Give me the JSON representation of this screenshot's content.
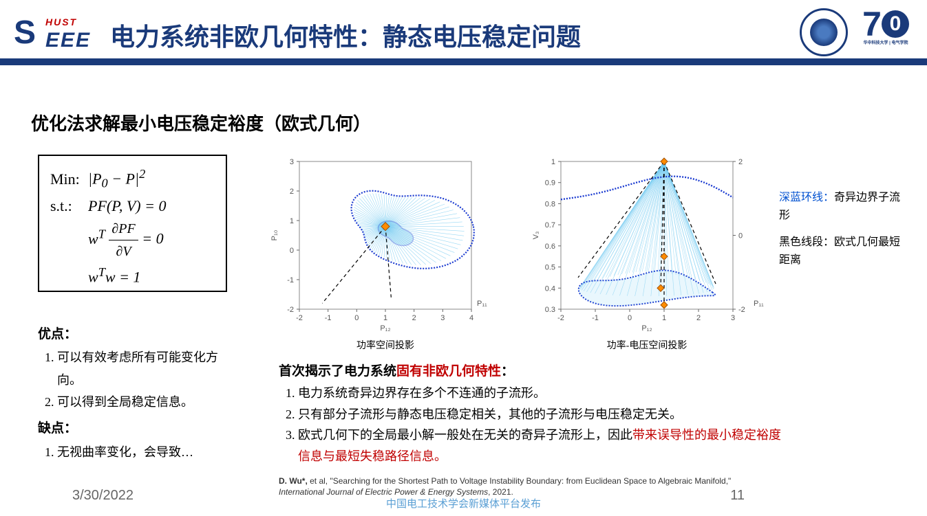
{
  "header": {
    "logo_hust": "HUST",
    "logo_s": "S",
    "logo_eee": "EEE",
    "title": "电力系统非欧几何特性：静态电压稳定问题",
    "anniv_7": "7",
    "anniv_0": "0",
    "anniv_sub": "华中科技大学 | 电气学院"
  },
  "section_title": "优化法求解最小电压稳定裕度（欧式几何）",
  "formula": {
    "min_label": "Min:",
    "min_expr_html": "|<i>P</i><sub>0</sub> − <i>P</i>|<sup>2</sup>",
    "st_label": "s.t.:",
    "st1_html": "<i>PF</i>(<i>P</i>, <i>V</i>) = 0",
    "st2_prefix_html": "<i>w</i><sup><i>T</i></sup> ",
    "st2_frac_num": "∂PF",
    "st2_frac_den": "∂V",
    "st2_suffix": " = 0",
    "st3_html": "<i>w</i><sup><i>T</i></sup><i>w</i> = 1"
  },
  "pros": {
    "heading": "优点：",
    "items": [
      "可以有效考虑所有可能变化方向。",
      "可以得到全局稳定信息。"
    ]
  },
  "cons": {
    "heading": "缺点：",
    "items": [
      "无视曲率变化，会导致…"
    ]
  },
  "fig1": {
    "caption": "功率空间投影",
    "xlabel": "P₁₂",
    "ylabel": "P₁₀",
    "ylabel2": "P₁₁",
    "xticks": [
      -2,
      -1,
      0,
      1,
      2,
      3,
      4
    ],
    "yticks": [
      -2,
      -1,
      0,
      1,
      2,
      3
    ],
    "colors": {
      "manifold": "#6ec8f0",
      "boundary": "#1a3ad0",
      "line": "#000000",
      "marker": "#ff8c00"
    }
  },
  "fig2": {
    "caption": "功率-电压空间投影",
    "xlabel": "P₁₂",
    "ylabel": "V₃",
    "ylabel2": "P₁₁",
    "xticks": [
      -2,
      -1,
      0,
      1,
      2,
      3
    ],
    "yticks": [
      0.3,
      0.4,
      0.5,
      0.6,
      0.7,
      0.8,
      0.9,
      1
    ],
    "yticks2": [
      -2,
      0,
      2
    ],
    "colors": {
      "manifold": "#6ec8f0",
      "boundary": "#1a3ad0",
      "line": "#000000",
      "marker": "#ff8c00"
    }
  },
  "legend": {
    "blue_label": "深蓝环线：",
    "blue_text": "奇异边界子流形",
    "black_label": "黑色线段：",
    "black_text": "欧式几何最短距离"
  },
  "findings": {
    "heading_prefix": "首次揭示了电力系统",
    "heading_red": "固有非欧几何特性",
    "heading_suffix": "：",
    "items": [
      {
        "text": "电力系统奇异边界存在多个不连通的子流形。"
      },
      {
        "text": "只有部分子流形与静态电压稳定相关，其他的子流形与电压稳定无关。"
      },
      {
        "prefix": "欧式几何下的全局最小解一般处在无关的奇异子流形上，因此",
        "red": "带来误导性的最小稳定裕度信息与最短失稳路径信息。"
      }
    ]
  },
  "citation": {
    "author": "D. Wu*,",
    "rest": " et al, \"Searching for the Shortest Path to Voltage Instability Boundary: from Euclidean Space to Algebraic Manifold,\" ",
    "journal": "International Journal of Electric Power & Energy Systems",
    "year": ", 2021."
  },
  "footer": {
    "date": "3/30/2022",
    "page": "11",
    "watermark": "中国电工技术学会新媒体平台发布"
  }
}
